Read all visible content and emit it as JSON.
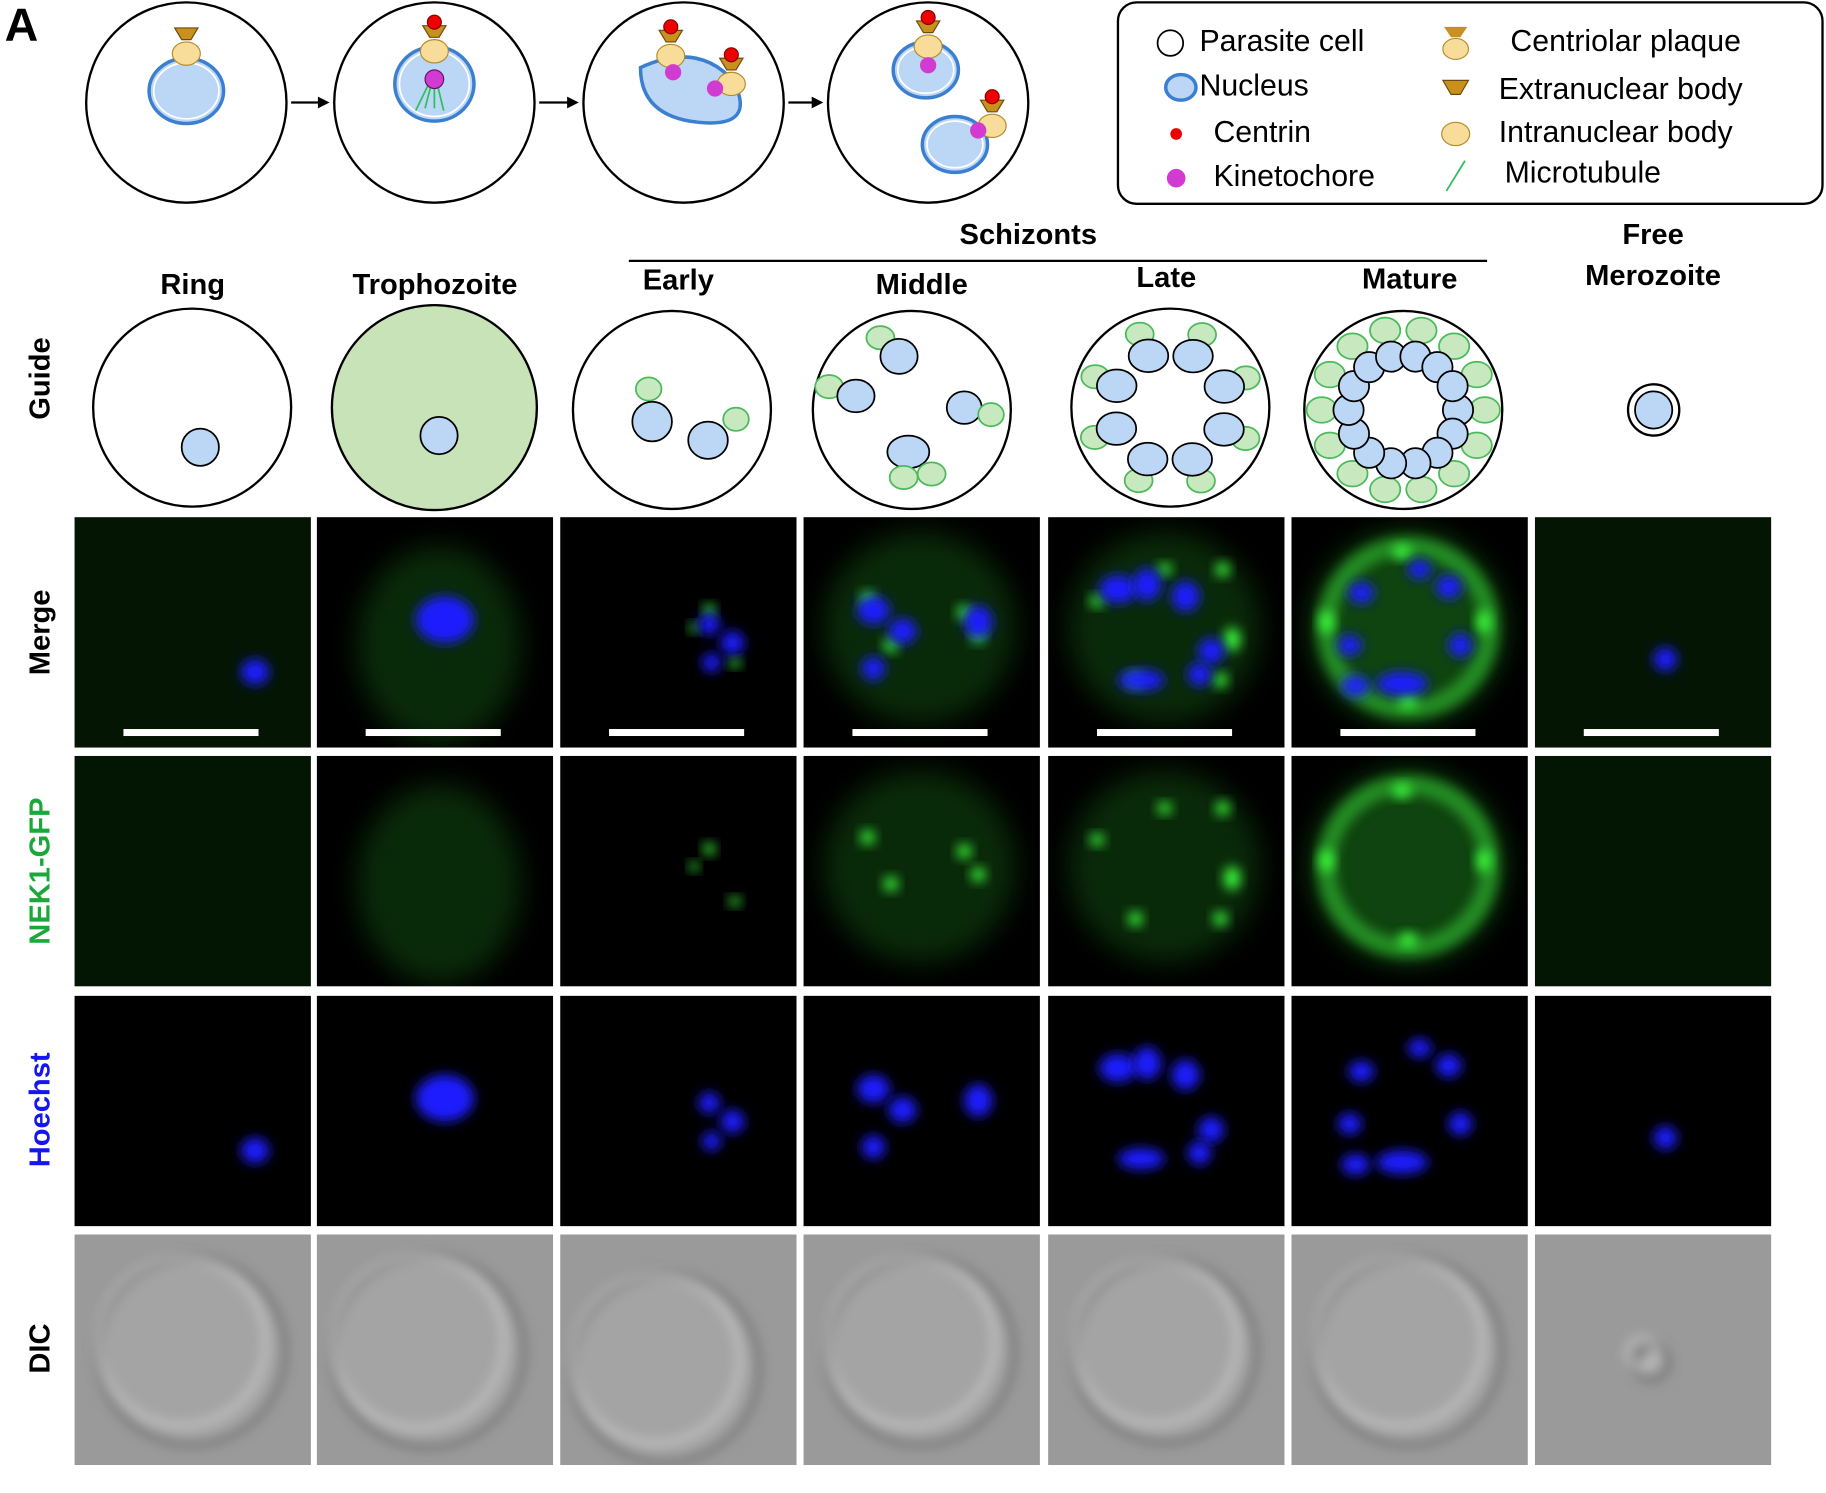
{
  "panel_label": "A",
  "legend": [
    "Parasite cell",
    "Nucleus",
    "Centrin",
    "Kinetochore",
    "Centriolar plaque",
    "Extranuclear body",
    "Intranuclear body",
    "Microtubule"
  ],
  "group_label": "Schizonts",
  "stages": [
    [
      "Ring"
    ],
    [
      "Trophozoite"
    ],
    [
      "Early"
    ],
    [
      "Middle"
    ],
    [
      "Late"
    ],
    [
      "Mature"
    ],
    [
      "Free",
      "Merozoite"
    ]
  ],
  "rows": [
    "Guide",
    "Merge",
    "NEK1-GFP",
    "Hoechst",
    "DIC"
  ]
}
